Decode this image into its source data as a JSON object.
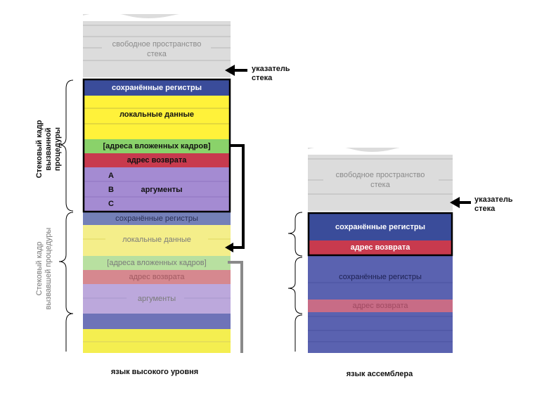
{
  "left": {
    "free_space_line1": "свободное пространство",
    "free_space_line2": "стека",
    "saved_registers": "сохранённые регистры",
    "local_data": "локальные данные",
    "nested_frames": "[адреса вложенных кадров]",
    "return_address": "адрес возврата",
    "arg_a": "A",
    "arg_b": "B",
    "arg_c": "C",
    "arguments": "аргументы",
    "saved_registers_faded": "сохранённые регистры",
    "local_data_faded": "локальные данные",
    "nested_frames_faded": "[адреса вложенных кадров]",
    "return_address_faded": "адрес возврата",
    "arguments_faded": "аргументы",
    "caption": "язык высокого уровня"
  },
  "right": {
    "free_space_line1": "свободное пространство",
    "free_space_line2": "стека",
    "saved_registers": "сохранённые регистры",
    "return_address": "адрес возврата",
    "saved_registers_faded": "сохранённые регистры",
    "return_address_faded": "адрес возврата",
    "caption": "язык ассемблера"
  },
  "pointer_left_line1": "указатель",
  "pointer_left_line2": "стека",
  "pointer_right_line1": "указатель",
  "pointer_right_line2": "стека",
  "frame_called": "Стековый кадр вызванной процедуры",
  "frame_calling": "Стековый кадр вызвавшей процедуры",
  "colors": {
    "free_space": "#dcdcdc",
    "saved_registers": "#3a4c9a",
    "local_data": "#fff23a",
    "nested_frames": "#8ad26a",
    "return_address": "#c83a4e",
    "arguments": "#a48bd2",
    "faded_saved_registers": "#7480b8",
    "faded_local_data": "#f4ee8a",
    "faded_nested_frames": "#b8e0a0",
    "faded_return_address": "#d6888f",
    "faded_arguments": "#bca8dc",
    "asm_faded_body": "#5a62b0"
  }
}
